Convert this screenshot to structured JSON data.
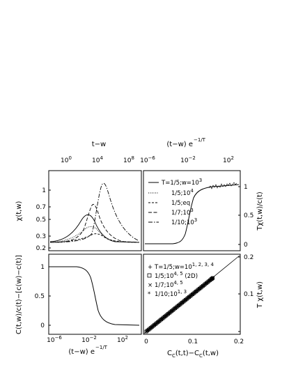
{
  "figure": {
    "top_axis_left": {
      "label": "t−w",
      "ticks": [
        "10^0",
        "10^4",
        "10^8"
      ]
    },
    "top_axis_right": {
      "label_main": "(t−w) e",
      "label_exp": "−1/T",
      "ticks": [
        "10^-6",
        "10^-2",
        "10^2"
      ]
    },
    "bottom_axis_left": {
      "label_main": "(t−w) e",
      "label_exp": "−1/T",
      "ticks": [
        "10^-6",
        "10^-2",
        "10^2"
      ]
    },
    "bottom_axis_right": {
      "label_main": "C",
      "label_sub1": "C",
      "label_mid": "(t,t)−C",
      "label_sub2": "C",
      "label_end": "(t,w)",
      "ticks": [
        "0",
        "0.1",
        "0.2"
      ]
    },
    "ylabel_tl": "χ(t,w)",
    "ylabel_tr": "Tχ(t,w)/c(t)",
    "ylabel_bl": "C(t,w)/c(t)−[c(w)−c(t)]",
    "ylabel_br": "T χ(t,w)",
    "ticks_tl_y": [
      "1",
      "0.7",
      "0.5",
      "0.3",
      "0.2"
    ],
    "ticks_tr_y": [
      "1",
      "0.5",
      "0"
    ],
    "ticks_bl_y": [
      "1",
      "0.5",
      "0"
    ],
    "ticks_br_y": [
      "0.2",
      "0.1",
      "0"
    ],
    "legend_tr": [
      {
        "text": "T=1/5;w=10^3",
        "style": "solid"
      },
      {
        "text": "1/5;10^4",
        "style": "dotted"
      },
      {
        "text": "1/5;eq",
        "style": "dashed"
      },
      {
        "text": "1/7;10^3",
        "style": "longdash"
      },
      {
        "text": "1/10;10^3",
        "style": "dashdot"
      }
    ],
    "legend_br": [
      {
        "text": "T=1/5;w=10^{1, 2, 3, 4}",
        "marker": "plus"
      },
      {
        "text": "1/5;10^{4, 5} (2D)",
        "marker": "square"
      },
      {
        "text": "1/7;10^{4, 5}",
        "marker": "cross"
      },
      {
        "text": "1/10;10^{1, 3}",
        "marker": "star"
      }
    ]
  },
  "chart_data": [
    {
      "type": "line",
      "panel": "top-left",
      "xlabel": "t−w",
      "xscale": "log",
      "ylabel": "χ(t,w)",
      "yscale": "log",
      "xlim": [
        1,
        1000000000
      ],
      "ylim": [
        0.2,
        1.3
      ],
      "series": [
        {
          "peak_x": 500,
          "peak_y": 0.6,
          "style": "solid"
        },
        {
          "peak_x": 2000,
          "peak_y": 0.38,
          "style": "dotted"
        },
        {
          "peak_x": 30000,
          "peak_y": 0.85,
          "style": "longdash"
        },
        {
          "peak_x": 200000,
          "peak_y": 1.1,
          "style": "dashdot"
        },
        {
          "peak_x": 3000,
          "peak_y": 0.3,
          "style": "dashed"
        }
      ]
    },
    {
      "type": "line",
      "panel": "top-right",
      "xlabel": "(t−w) e^{−1/T}",
      "xscale": "log",
      "ylabel": "Tχ(t,w)/c(t)",
      "xlim": [
        1e-06,
        10000
      ],
      "ylim": [
        -0.05,
        1.15
      ],
      "x": [
        1e-06,
        1e-05,
        0.0001,
        0.001,
        0.003,
        0.01,
        0.03,
        0.1,
        0.3,
        1,
        3,
        10,
        100,
        1000,
        10000
      ],
      "values": [
        0,
        0,
        0,
        0.01,
        0.02,
        0.06,
        0.15,
        0.42,
        0.7,
        0.86,
        0.93,
        0.96,
        0.99,
        1.01,
        1.02
      ]
    },
    {
      "type": "line",
      "panel": "bottom-left",
      "xlabel": "(t−w) e^{−1/T}",
      "xscale": "log",
      "ylabel": "C(t,w)/c(t)−[c(w)−c(t)]",
      "xlim": [
        1e-06,
        10000
      ],
      "ylim": [
        -0.05,
        1.15
      ],
      "x": [
        1e-06,
        1e-05,
        0.0001,
        0.001,
        0.003,
        0.01,
        0.03,
        0.1,
        0.3,
        1,
        3,
        10,
        100,
        1000,
        10000
      ],
      "values": [
        1,
        1,
        1,
        0.99,
        0.97,
        0.93,
        0.84,
        0.62,
        0.35,
        0.15,
        0.06,
        0.02,
        0,
        0,
        0
      ]
    },
    {
      "type": "scatter",
      "panel": "bottom-right",
      "xlabel": "C_C(t,t)−C_C(t,w)",
      "ylabel": "T χ(t,w)",
      "xlim": [
        0,
        0.2
      ],
      "ylim": [
        0,
        0.2
      ],
      "reference_line": "y=x",
      "x": [
        0,
        0.01,
        0.02,
        0.03,
        0.04,
        0.05,
        0.06,
        0.07,
        0.08,
        0.09,
        0.1,
        0.11,
        0.12,
        0.13,
        0.14,
        0.145
      ],
      "values": [
        0,
        0.01,
        0.02,
        0.03,
        0.04,
        0.05,
        0.06,
        0.07,
        0.08,
        0.09,
        0.1,
        0.11,
        0.12,
        0.13,
        0.14,
        0.145
      ]
    }
  ]
}
